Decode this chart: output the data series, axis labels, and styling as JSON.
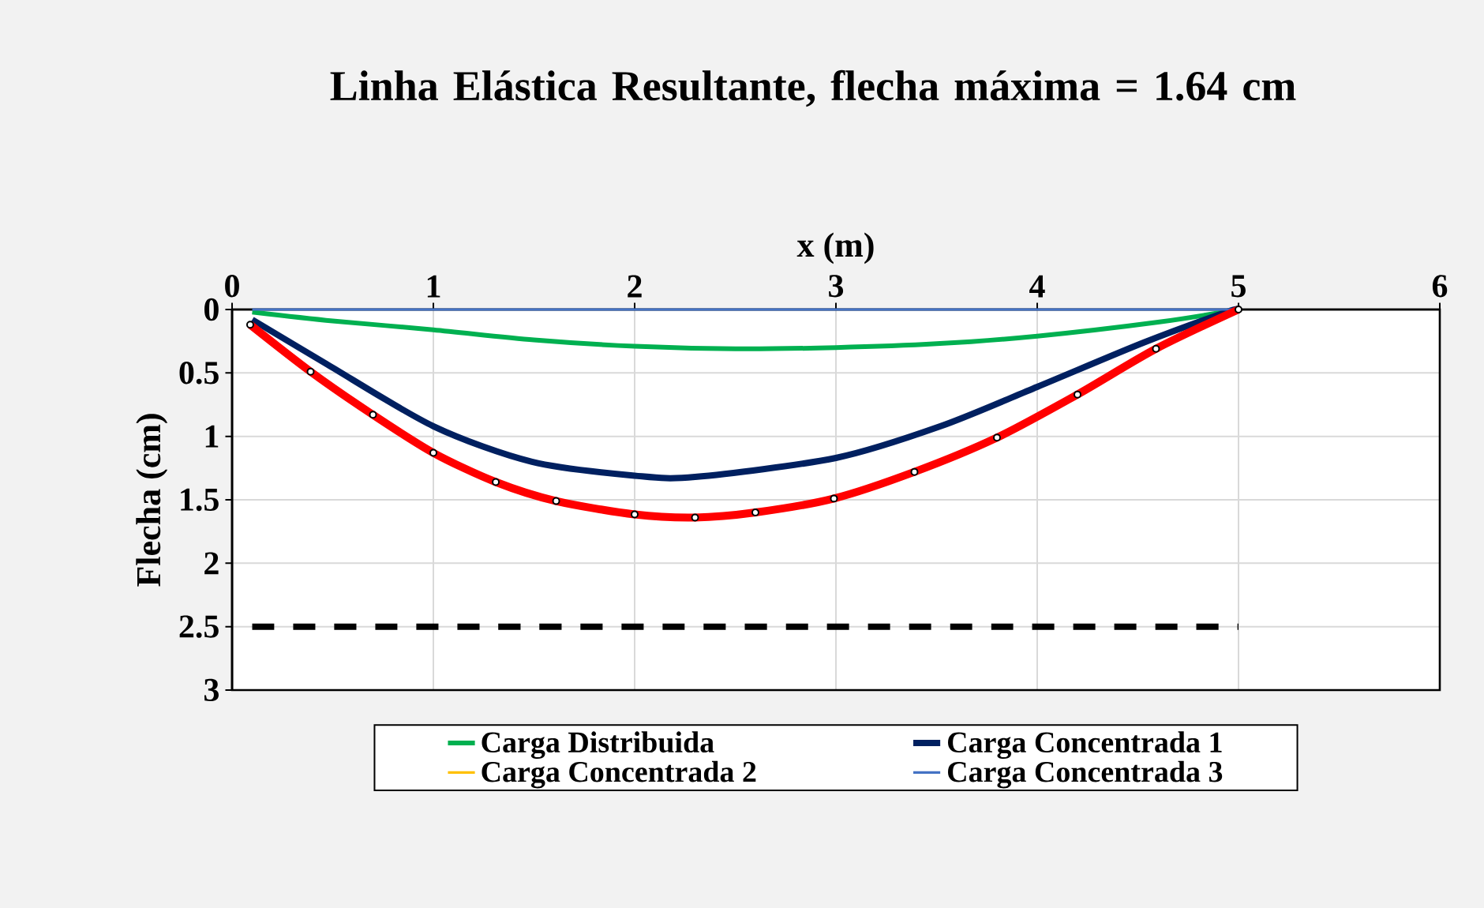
{
  "chart_data": {
    "type": "line",
    "title": "Linha Elástica Resultante, flecha máxima = 1.64 cm",
    "xlabel": "x (m)",
    "ylabel": "Flecha (cm)",
    "xlim": [
      0,
      6
    ],
    "xticks": [
      0,
      1,
      2,
      3,
      4,
      5,
      6
    ],
    "ylim": [
      3,
      0
    ],
    "yticks": [
      0,
      0.5,
      1,
      1.5,
      2,
      2.5,
      3
    ],
    "grid": true,
    "legend": "bottom",
    "series": [
      {
        "name": "Carga Distribuida",
        "color": "#00b050",
        "x": [
          0.1,
          0.5,
          1.0,
          1.5,
          2.0,
          2.5,
          3.0,
          3.5,
          4.0,
          4.6,
          5.0
        ],
        "values": [
          0.02,
          0.09,
          0.16,
          0.24,
          0.29,
          0.31,
          0.3,
          0.27,
          0.21,
          0.1,
          0
        ]
      },
      {
        "name": "Carga Concentrada 1",
        "color": "#002060",
        "x": [
          0.1,
          0.47,
          1.0,
          1.49,
          2.0,
          2.3,
          3.0,
          3.52,
          4.0,
          4.53,
          4.94,
          5.0
        ],
        "values": [
          0.08,
          0.43,
          0.92,
          1.2,
          1.31,
          1.32,
          1.17,
          0.92,
          0.61,
          0.26,
          0.02,
          0
        ]
      },
      {
        "name": "Carga Concentrada 2",
        "color": "#ffc000"
      },
      {
        "name": "Carga Concentrada 3",
        "color": "#4472c4",
        "x": [
          0.1,
          5.0
        ],
        "values": [
          0,
          0
        ]
      },
      {
        "color": "#ff0000",
        "marker": "circle",
        "x": [
          0.09,
          0.39,
          0.7,
          1.0,
          1.31,
          1.61,
          2.0,
          2.3,
          2.6,
          2.99,
          3.39,
          3.8,
          4.2,
          4.59,
          5.0
        ],
        "values": [
          0.12,
          0.49,
          0.83,
          1.13,
          1.36,
          1.51,
          1.615,
          1.64,
          1.6,
          1.49,
          1.28,
          1.01,
          0.67,
          0.31,
          0
        ]
      },
      {
        "color": "#000000",
        "line_style": "dashed",
        "x": [
          0.1,
          5.0
        ],
        "values": [
          2.5,
          2.5
        ]
      }
    ]
  }
}
